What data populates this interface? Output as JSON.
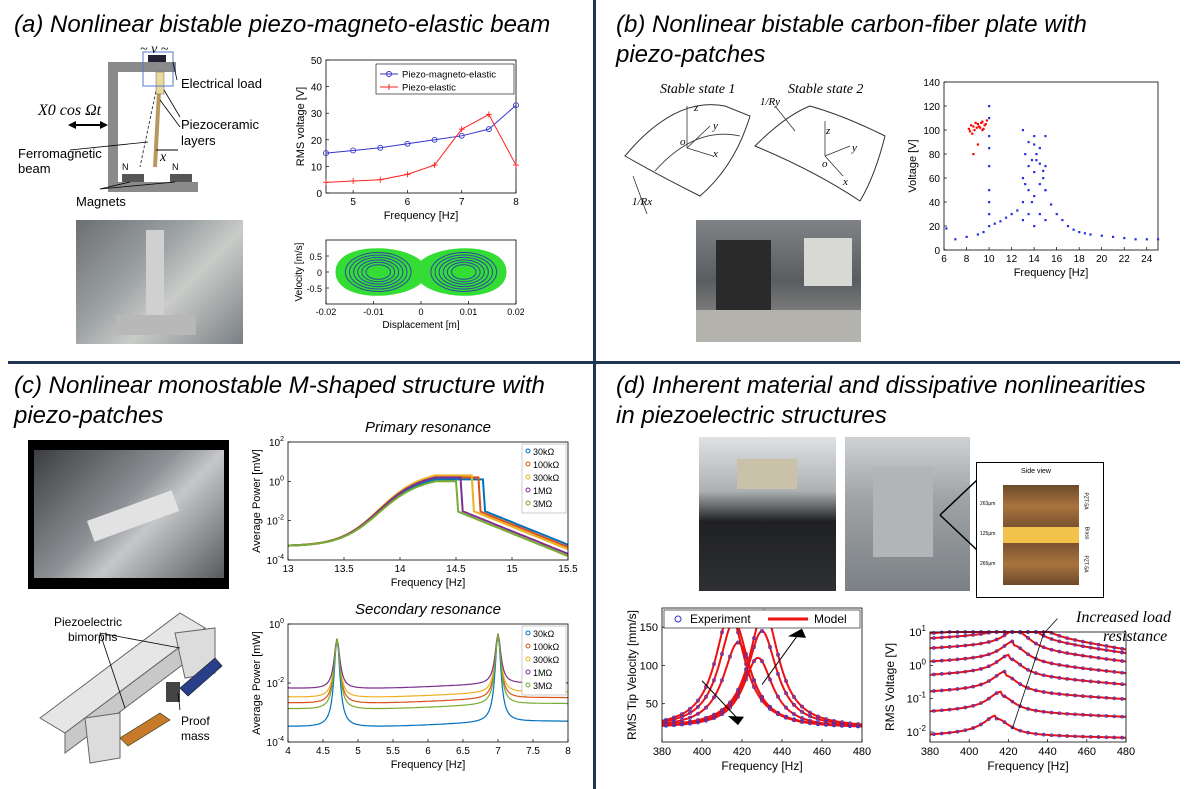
{
  "panels": {
    "a": {
      "title": "(a) Nonlinear bistable piezo-magneto-elastic beam",
      "schematic": {
        "voltage_symbol": "~ v ~",
        "excitation": "X0 cos Ωt",
        "electrical_load": "Electrical load",
        "piezoceramic": "Piezoceramic",
        "layers": "layers",
        "ferromagnetic": "Ferromagnetic",
        "beam": "beam",
        "magnets": "Magnets",
        "x_symbol": "x",
        "n_left": "N",
        "n_right": "N"
      }
    },
    "b": {
      "title_line1": "(b) Nonlinear bistable carbon-fiber plate with",
      "title_line2": "piezo-patches",
      "stable1": "Stable state 1",
      "stable2": "Stable state 2",
      "radius_x": "1/Rx",
      "radius_y": "1/Ry",
      "axes": {
        "x": "x",
        "y": "y",
        "z": "z",
        "o": "o"
      }
    },
    "c": {
      "title_line1": "(c) Nonlinear monostable M-shaped structure with",
      "title_line2": "piezo-patches",
      "piezo_bimorphs_1": "Piezoelectric",
      "piezo_bimorphs_2": "bimorphs",
      "proof_mass_1": "Proof",
      "proof_mass_2": "mass"
    },
    "d": {
      "title_line1": "(d) Inherent material and dissipative nonlinearities",
      "title_line2": "in piezoelectric structures",
      "side_view": "Side view",
      "side_dims": [
        "263μm",
        "125μm",
        "265μm"
      ],
      "side_layers": [
        "PZT-5A",
        "Brass",
        "PZT-5A"
      ],
      "annotation_1": "Increased load",
      "annotation_2": "resistance"
    }
  },
  "chart_data": [
    {
      "id": "a-rms",
      "type": "line",
      "xlabel": "Frequency [Hz]",
      "ylabel": "RMS voltage [V]",
      "xlim": [
        4.5,
        8
      ],
      "ylim": [
        0,
        50
      ],
      "xticks": [
        5,
        6,
        7,
        8
      ],
      "yticks": [
        0,
        10,
        20,
        30,
        40,
        50
      ],
      "grid": false,
      "legend": "top-right",
      "series": [
        {
          "name": "Piezo-magneto-elastic",
          "color": "#3333cc",
          "marker": "circle",
          "x": [
            4.5,
            5.0,
            5.5,
            6.0,
            6.5,
            7.0,
            7.5,
            8.0
          ],
          "y": [
            15,
            16,
            17,
            18.5,
            20,
            21.5,
            24,
            33
          ]
        },
        {
          "name": "Piezo-elastic",
          "color": "#ff2222",
          "marker": "plus",
          "x": [
            4.5,
            5.0,
            5.5,
            6.0,
            6.5,
            7.0,
            7.5,
            8.0
          ],
          "y": [
            4,
            4.5,
            5,
            7,
            10.5,
            24,
            29.5,
            10.5
          ]
        }
      ]
    },
    {
      "id": "a-phase",
      "type": "scatter",
      "xlabel": "Displacement [m]",
      "ylabel": "Velocity [m/s]",
      "xlim": [
        -0.02,
        0.02
      ],
      "ylim": [
        -1,
        1
      ],
      "xticks": [
        -0.02,
        -0.01,
        0,
        0.01,
        0.02
      ],
      "yticks": [
        -0.5,
        0,
        0.5
      ],
      "fill": "#33dd33",
      "orbit": "#3344aa"
    },
    {
      "id": "b-voltage",
      "type": "scatter",
      "xlabel": "Frequency  [Hz]",
      "ylabel": "Voltage [V]",
      "xlim": [
        6,
        25
      ],
      "ylim": [
        0,
        140
      ],
      "xticks": [
        6,
        8,
        10,
        12,
        14,
        16,
        18,
        20,
        22,
        24
      ],
      "yticks": [
        0,
        20,
        40,
        60,
        80,
        100,
        120,
        140
      ],
      "series": [
        {
          "name": "",
          "color": "#ff0000",
          "x": [
            8.2,
            8.4,
            8.6,
            8.8,
            9.0,
            9.2,
            9.4,
            9.6,
            9.8,
            8.3,
            8.7,
            9.1,
            9.5,
            8.5,
            8.9,
            9.3,
            9.7,
            8.6,
            9.0,
            9.4
          ],
          "y": [
            101,
            104,
            103,
            106,
            105,
            102,
            107,
            104,
            108,
            99,
            100,
            103,
            101,
            97,
            102,
            106,
            105,
            80,
            88,
            100
          ]
        },
        {
          "name": "",
          "color": "#2233dd",
          "x": [
            6.2,
            7,
            8,
            9,
            9.5,
            10,
            10.5,
            11,
            11.5,
            12,
            12.5,
            13,
            13.2,
            13.5,
            13.8,
            14,
            14.2,
            14.5,
            14.8,
            15,
            15.5,
            16,
            16.5,
            17,
            17.5,
            18,
            18.5,
            19,
            20,
            21,
            22,
            23,
            24,
            25
          ],
          "y": [
            18,
            9,
            11,
            13,
            15,
            20,
            22,
            24,
            27,
            30,
            33,
            40,
            55,
            70,
            75,
            88,
            80,
            72,
            66,
            50,
            38,
            30,
            25,
            20,
            17,
            15,
            14,
            13,
            12,
            11,
            10,
            9,
            9,
            9
          ]
        },
        {
          "name": "",
          "color": "#2233dd",
          "x": [
            10,
            10,
            10,
            10,
            10,
            10,
            10,
            10,
            13,
            13,
            13,
            13.5,
            13.5,
            13.5,
            14,
            14,
            14,
            14,
            14.5,
            14.5,
            14.5,
            15,
            15,
            15,
            15,
            13.2,
            13.8,
            14.2,
            14.8
          ],
          "y": [
            120,
            110,
            95,
            85,
            70,
            50,
            40,
            30,
            100,
            60,
            25,
            90,
            50,
            30,
            95,
            65,
            45,
            20,
            85,
            55,
            30,
            95,
            70,
            50,
            25,
            80,
            40,
            75,
            60
          ]
        }
      ]
    },
    {
      "id": "c-primary",
      "type": "line",
      "title": "Primary resonance",
      "xlabel": "Frequency [Hz]",
      "ylabel": "Average Power [mW]",
      "xlim": [
        13,
        15.5
      ],
      "xticks": [
        13,
        13.5,
        14,
        14.5,
        15,
        15.5
      ],
      "ylog": true,
      "ylim_exp": [
        -4,
        2
      ],
      "yticks_exp": [
        -4,
        -2,
        0,
        2
      ],
      "legend": "top-right",
      "series": [
        {
          "name": "30kΩ",
          "color": "#0072bd",
          "peak_x": 14.75,
          "peak_log": 0.1
        },
        {
          "name": "100kΩ",
          "color": "#d95319",
          "peak_x": 14.7,
          "peak_log": 0.2
        },
        {
          "name": "300kΩ",
          "color": "#edb120",
          "peak_x": 14.65,
          "peak_log": 0.3
        },
        {
          "name": "1MΩ",
          "color": "#7e2f8e",
          "peak_x": 14.55,
          "peak_log": 0.2
        },
        {
          "name": "3MΩ",
          "color": "#77ac30",
          "peak_x": 14.5,
          "peak_log": 0.0
        }
      ]
    },
    {
      "id": "c-secondary",
      "type": "line",
      "title": "Secondary resonance",
      "xlabel": "Frequency [Hz]",
      "ylabel": "Average Power [mW]",
      "xlim": [
        4,
        8
      ],
      "xticks": [
        4,
        4.5,
        5,
        5.5,
        6,
        6.5,
        7,
        7.5,
        8
      ],
      "ylog": true,
      "ylim_exp": [
        -4,
        0
      ],
      "yticks_exp": [
        -4,
        -2,
        0
      ],
      "legend": "top-right",
      "series": [
        {
          "name": "30kΩ",
          "color": "#0072bd",
          "base_log": -3.4
        },
        {
          "name": "100kΩ",
          "color": "#d95319",
          "base_log": -2.6
        },
        {
          "name": "300kΩ",
          "color": "#edb120",
          "base_log": -2.4
        },
        {
          "name": "1MΩ",
          "color": "#7e2f8e",
          "base_log": -2.1
        },
        {
          "name": "3MΩ",
          "color": "#77ac30",
          "base_log": -2.8
        }
      ]
    },
    {
      "id": "d-velocity",
      "type": "line",
      "xlabel": "Frequency [Hz]",
      "ylabel": "RMS Tip Velocity [mm/s]",
      "xlim": [
        380,
        480
      ],
      "ylim": [
        0,
        175
      ],
      "xticks": [
        380,
        400,
        420,
        440,
        460,
        480
      ],
      "yticks": [
        50,
        100,
        150
      ],
      "legend": "top",
      "series": [
        {
          "name": "Experiment",
          "color": "#3333cc",
          "marker": "circle"
        },
        {
          "name": "Model",
          "color": "#ee1111"
        }
      ]
    },
    {
      "id": "d-voltage",
      "type": "line",
      "xlabel": "Frequency [Hz]",
      "ylabel": "RMS Voltage [V]",
      "xlim": [
        380,
        480
      ],
      "xticks": [
        380,
        400,
        420,
        440,
        460,
        480
      ],
      "ylog": true,
      "ylim_exp": [
        -2.3,
        1
      ],
      "yticks_exp": [
        -2,
        -1,
        0,
        1
      ]
    }
  ]
}
